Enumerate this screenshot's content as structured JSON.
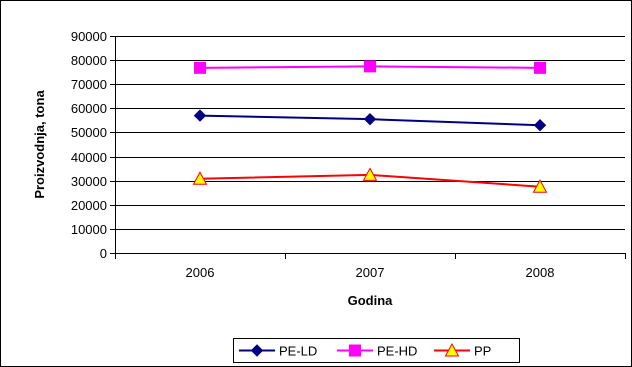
{
  "chart_data": {
    "type": "line",
    "title": "",
    "xlabel": "Godina",
    "ylabel": "Proizvodnja, tona",
    "categories": [
      "2006",
      "2007",
      "2008"
    ],
    "ylim": [
      0,
      90000
    ],
    "yticks": [
      0,
      10000,
      20000,
      30000,
      40000,
      50000,
      60000,
      70000,
      80000,
      90000
    ],
    "grid": true,
    "legend": "bottom",
    "series": [
      {
        "name": "PE-LD",
        "values": [
          57000,
          55500,
          53000
        ],
        "color": "#000080",
        "marker": "diamond"
      },
      {
        "name": "PE-HD",
        "values": [
          76800,
          77400,
          76800
        ],
        "color": "#ff00ff",
        "marker": "square"
      },
      {
        "name": "PP",
        "values": [
          30800,
          32400,
          27500
        ],
        "color": "#ff0000",
        "marker": "triangle",
        "marker_fill": "#ffff00"
      }
    ]
  }
}
